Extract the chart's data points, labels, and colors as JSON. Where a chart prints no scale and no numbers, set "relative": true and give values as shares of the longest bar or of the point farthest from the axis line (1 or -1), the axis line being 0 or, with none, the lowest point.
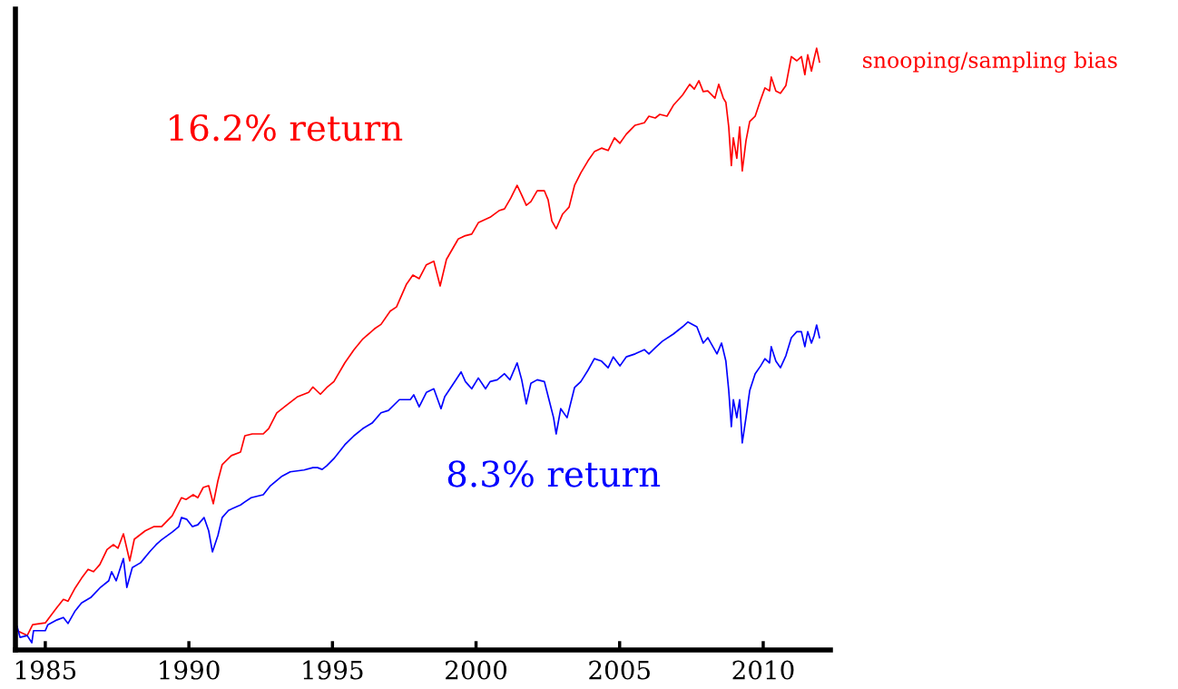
{
  "chart_data": {
    "type": "line",
    "relative": true,
    "xlim": [
      1983.96,
      2012.34
    ],
    "xticks": [
      1985,
      1990,
      1995,
      2000,
      2005,
      2010
    ],
    "tick_labels": "x",
    "grid": false,
    "legend": false,
    "annotations": [
      "16.2% return",
      "8.3% return"
    ],
    "series": [
      {
        "name": "snooping/sampling bias",
        "color": "#ff0000",
        "x": [
          1984.02,
          1984.37,
          1984.56,
          1985.0,
          1985.38,
          1985.63,
          1985.79,
          1986.04,
          1986.26,
          1986.49,
          1986.68,
          1986.9,
          1987.15,
          1987.37,
          1987.53,
          1987.72,
          1987.94,
          1988.1,
          1988.48,
          1988.79,
          1989.05,
          1989.42,
          1989.74,
          1989.9,
          1990.15,
          1990.31,
          1990.5,
          1990.69,
          1990.85,
          1991.01,
          1991.16,
          1991.48,
          1991.8,
          1991.95,
          1992.21,
          1992.59,
          1992.78,
          1993.06,
          1993.38,
          1993.79,
          1994.17,
          1994.32,
          1994.58,
          1994.8,
          1995.05,
          1995.43,
          1995.75,
          1996.06,
          1996.47,
          1996.69,
          1997.01,
          1997.23,
          1997.58,
          1997.8,
          1998.02,
          1998.27,
          1998.53,
          1998.75,
          1998.97,
          1999.38,
          1999.6,
          1999.85,
          2000.08,
          2000.49,
          2000.8,
          2000.99,
          2001.21,
          2001.43,
          2001.59,
          2001.75,
          2001.91,
          2002.13,
          2002.38,
          2002.51,
          2002.64,
          2002.79,
          2003.01,
          2003.24,
          2003.43,
          2003.65,
          2003.9,
          2004.12,
          2004.37,
          2004.6,
          2004.82,
          2005.01,
          2005.23,
          2005.54,
          2005.86,
          2006.02,
          2006.24,
          2006.4,
          2006.65,
          2006.87,
          2007.19,
          2007.44,
          2007.6,
          2007.76,
          2007.91,
          2008.07,
          2008.32,
          2008.45,
          2008.61,
          2008.7,
          2008.8,
          2008.89,
          2008.96,
          2009.08,
          2009.18,
          2009.27,
          2009.4,
          2009.53,
          2009.72,
          2009.91,
          2010.06,
          2010.22,
          2010.28,
          2010.44,
          2010.6,
          2010.79,
          2010.98,
          2011.17,
          2011.33,
          2011.45,
          2011.55,
          2011.68,
          2011.77,
          2011.86,
          2011.96
        ],
        "values": [
          0.032,
          0.024,
          0.042,
          0.045,
          0.069,
          0.084,
          0.081,
          0.103,
          0.119,
          0.134,
          0.13,
          0.142,
          0.167,
          0.175,
          0.169,
          0.193,
          0.148,
          0.184,
          0.198,
          0.205,
          0.205,
          0.223,
          0.253,
          0.25,
          0.258,
          0.253,
          0.27,
          0.273,
          0.243,
          0.281,
          0.308,
          0.323,
          0.329,
          0.356,
          0.359,
          0.359,
          0.368,
          0.394,
          0.406,
          0.421,
          0.428,
          0.437,
          0.425,
          0.436,
          0.446,
          0.477,
          0.499,
          0.517,
          0.534,
          0.541,
          0.563,
          0.57,
          0.608,
          0.623,
          0.617,
          0.64,
          0.646,
          0.605,
          0.649,
          0.683,
          0.688,
          0.691,
          0.71,
          0.719,
          0.73,
          0.733,
          0.751,
          0.772,
          0.756,
          0.739,
          0.745,
          0.763,
          0.763,
          0.748,
          0.713,
          0.7,
          0.724,
          0.736,
          0.772,
          0.793,
          0.813,
          0.828,
          0.834,
          0.83,
          0.851,
          0.842,
          0.857,
          0.872,
          0.876,
          0.887,
          0.884,
          0.89,
          0.887,
          0.905,
          0.922,
          0.94,
          0.932,
          0.946,
          0.928,
          0.929,
          0.917,
          0.94,
          0.917,
          0.91,
          0.869,
          0.805,
          0.851,
          0.817,
          0.869,
          0.796,
          0.846,
          0.878,
          0.887,
          0.914,
          0.934,
          0.929,
          0.952,
          0.929,
          0.925,
          0.938,
          0.986,
          0.979,
          0.986,
          0.956,
          0.989,
          0.962,
          0.982,
          1,
          0.977
        ]
      },
      {
        "color": "#0000ff",
        "x": [
          1984.02,
          1984.12,
          1984.37,
          1984.53,
          1984.59,
          1985.0,
          1985.09,
          1985.41,
          1985.63,
          1985.79,
          1986.04,
          1986.26,
          1986.58,
          1986.9,
          1987.21,
          1987.31,
          1987.47,
          1987.72,
          1987.84,
          1988.03,
          1988.32,
          1988.63,
          1988.86,
          1989.05,
          1989.42,
          1989.65,
          1989.74,
          1989.93,
          1990.12,
          1990.31,
          1990.53,
          1990.69,
          1990.82,
          1991.01,
          1991.16,
          1991.38,
          1991.8,
          1991.95,
          1992.17,
          1992.59,
          1992.84,
          1993.22,
          1993.53,
          1994.01,
          1994.32,
          1994.48,
          1994.64,
          1994.8,
          1995.05,
          1995.43,
          1995.75,
          1996.06,
          1996.38,
          1996.69,
          1996.95,
          1997.33,
          1997.71,
          1997.83,
          1998.02,
          1998.27,
          1998.53,
          1998.78,
          1998.91,
          1999.22,
          1999.48,
          1999.63,
          1999.85,
          2000.08,
          2000.33,
          2000.49,
          2000.74,
          2000.99,
          2001.18,
          2001.43,
          2001.59,
          2001.75,
          2001.91,
          2002.13,
          2002.38,
          2002.54,
          2002.7,
          2002.79,
          2002.95,
          2003.17,
          2003.43,
          2003.65,
          2003.9,
          2004.12,
          2004.37,
          2004.6,
          2004.78,
          2005.01,
          2005.23,
          2005.54,
          2005.86,
          2006.02,
          2006.24,
          2006.49,
          2006.87,
          2007.19,
          2007.38,
          2007.57,
          2007.69,
          2007.91,
          2008.07,
          2008.39,
          2008.55,
          2008.7,
          2008.8,
          2008.89,
          2008.96,
          2009.08,
          2009.18,
          2009.27,
          2009.4,
          2009.53,
          2009.72,
          2009.91,
          2010.06,
          2010.22,
          2010.28,
          2010.44,
          2010.6,
          2010.79,
          2010.98,
          2011.17,
          2011.33,
          2011.45,
          2011.55,
          2011.68,
          2011.77,
          2011.86,
          2011.96
        ],
        "values": [
          0.039,
          0.021,
          0.024,
          0.012,
          0.032,
          0.032,
          0.042,
          0.05,
          0.054,
          0.044,
          0.065,
          0.078,
          0.087,
          0.103,
          0.115,
          0.13,
          0.115,
          0.152,
          0.104,
          0.137,
          0.145,
          0.163,
          0.175,
          0.183,
          0.196,
          0.205,
          0.22,
          0.217,
          0.205,
          0.208,
          0.22,
          0.198,
          0.163,
          0.19,
          0.22,
          0.232,
          0.241,
          0.246,
          0.253,
          0.258,
          0.273,
          0.288,
          0.296,
          0.299,
          0.303,
          0.303,
          0.3,
          0.306,
          0.318,
          0.341,
          0.356,
          0.368,
          0.377,
          0.394,
          0.398,
          0.416,
          0.416,
          0.424,
          0.404,
          0.428,
          0.434,
          0.401,
          0.421,
          0.443,
          0.462,
          0.446,
          0.434,
          0.452,
          0.434,
          0.446,
          0.449,
          0.459,
          0.449,
          0.477,
          0.449,
          0.409,
          0.443,
          0.449,
          0.446,
          0.416,
          0.386,
          0.359,
          0.401,
          0.386,
          0.436,
          0.446,
          0.465,
          0.484,
          0.48,
          0.469,
          0.487,
          0.472,
          0.487,
          0.492,
          0.499,
          0.492,
          0.502,
          0.513,
          0.525,
          0.537,
          0.545,
          0.54,
          0.537,
          0.51,
          0.519,
          0.492,
          0.51,
          0.48,
          0.431,
          0.371,
          0.416,
          0.386,
          0.416,
          0.344,
          0.386,
          0.431,
          0.459,
          0.472,
          0.484,
          0.477,
          0.504,
          0.48,
          0.469,
          0.489,
          0.519,
          0.529,
          0.529,
          0.504,
          0.529,
          0.51,
          0.522,
          0.54,
          0.519
        ]
      }
    ]
  }
}
